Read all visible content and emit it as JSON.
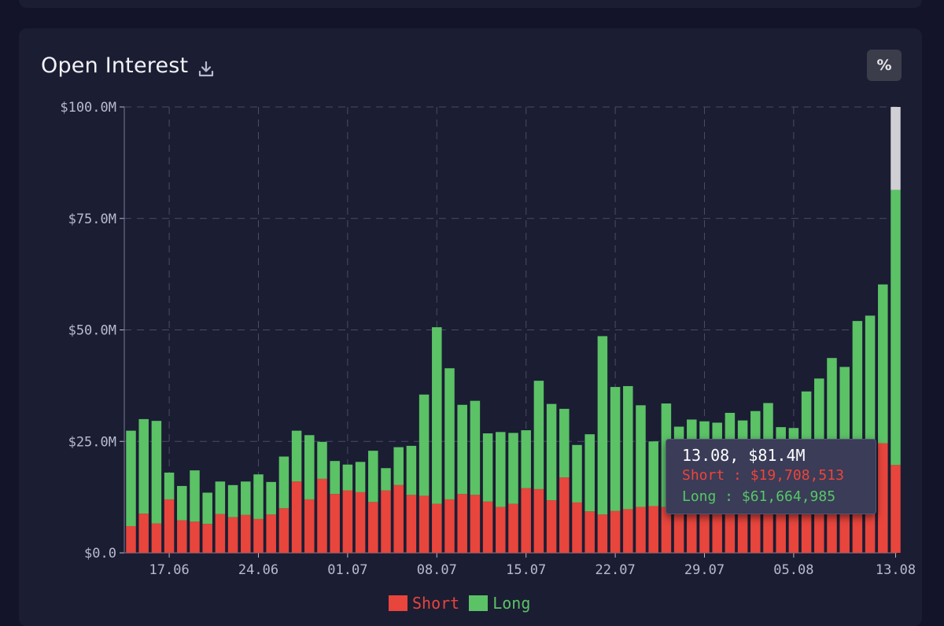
{
  "panel": {
    "title": "Open Interest",
    "download_icon": "download-icon",
    "percent_button": "%"
  },
  "tooltip": {
    "title": "13.08, $81.4M",
    "short": "Short : $19,708,513",
    "long": "Long : $61,664,985"
  },
  "legend": [
    {
      "name": "Short",
      "color": "#e8453c"
    },
    {
      "name": "Long",
      "color": "#5bc266"
    }
  ],
  "colors": {
    "short": "#e8453c",
    "long": "#5bc266",
    "highlight_remainder": "#d0d0d4",
    "axis_text": "#b8bad0",
    "grid": "#4a4c66"
  },
  "chart_data": {
    "type": "bar",
    "stacked": true,
    "x_start_date": "2024-06-14",
    "x_tick_labels": [
      "17.06",
      "24.06",
      "01.07",
      "08.07",
      "15.07",
      "22.07",
      "29.07",
      "05.08",
      "13.08"
    ],
    "x_tick_indices": [
      3,
      10,
      17,
      24,
      31,
      38,
      45,
      52,
      60
    ],
    "y_tick_labels": [
      "$0.0",
      "$25.0M",
      "$50.0M",
      "$75.0M",
      "$100.0M"
    ],
    "ylim": [
      0,
      100
    ],
    "y_unit": "$M",
    "grid": true,
    "legend_position": "bottom-center",
    "highlighted_index": 60,
    "series": [
      {
        "name": "Short",
        "values": [
          6,
          8.8,
          6.6,
          12,
          7.3,
          7,
          6.5,
          8.7,
          8,
          8.5,
          7.6,
          8.6,
          10,
          16,
          12,
          16.6,
          13.2,
          14,
          13.6,
          11.4,
          14,
          15.2,
          13,
          12.8,
          11,
          12,
          13.2,
          13,
          11.5,
          10.3,
          11,
          14.5,
          14.3,
          11.8,
          16.9,
          11.3,
          9.3,
          8.6,
          9.4,
          9.8,
          10.3,
          10.5,
          10.3,
          11.3,
          13.7,
          14.5,
          15,
          14.9,
          14.7,
          14.2,
          13.7,
          14.8,
          16.6,
          17.8,
          17.4,
          20.1,
          20.1,
          23.4,
          22.6,
          24.6,
          19.7
        ]
      },
      {
        "name": "Long",
        "values": [
          21.4,
          21.2,
          23,
          6,
          7.7,
          11.5,
          7,
          7.3,
          7.2,
          7.5,
          10,
          7.3,
          11.6,
          11.4,
          14.4,
          8.3,
          7.4,
          5.8,
          6.8,
          11.5,
          5,
          8.5,
          11,
          22.7,
          39.6,
          29.4,
          20,
          21.1,
          15.3,
          16.8,
          15.9,
          13,
          24.3,
          21.6,
          15.4,
          12.9,
          17.3,
          40,
          27.8,
          27.6,
          22.8,
          14.5,
          23.2,
          17,
          16.2,
          15,
          14.2,
          16.5,
          15,
          17.6,
          19.9,
          13.4,
          11.4,
          18.4,
          21.7,
          23.6,
          21.6,
          28.6,
          30.6,
          35.6,
          61.7
        ]
      }
    ]
  }
}
